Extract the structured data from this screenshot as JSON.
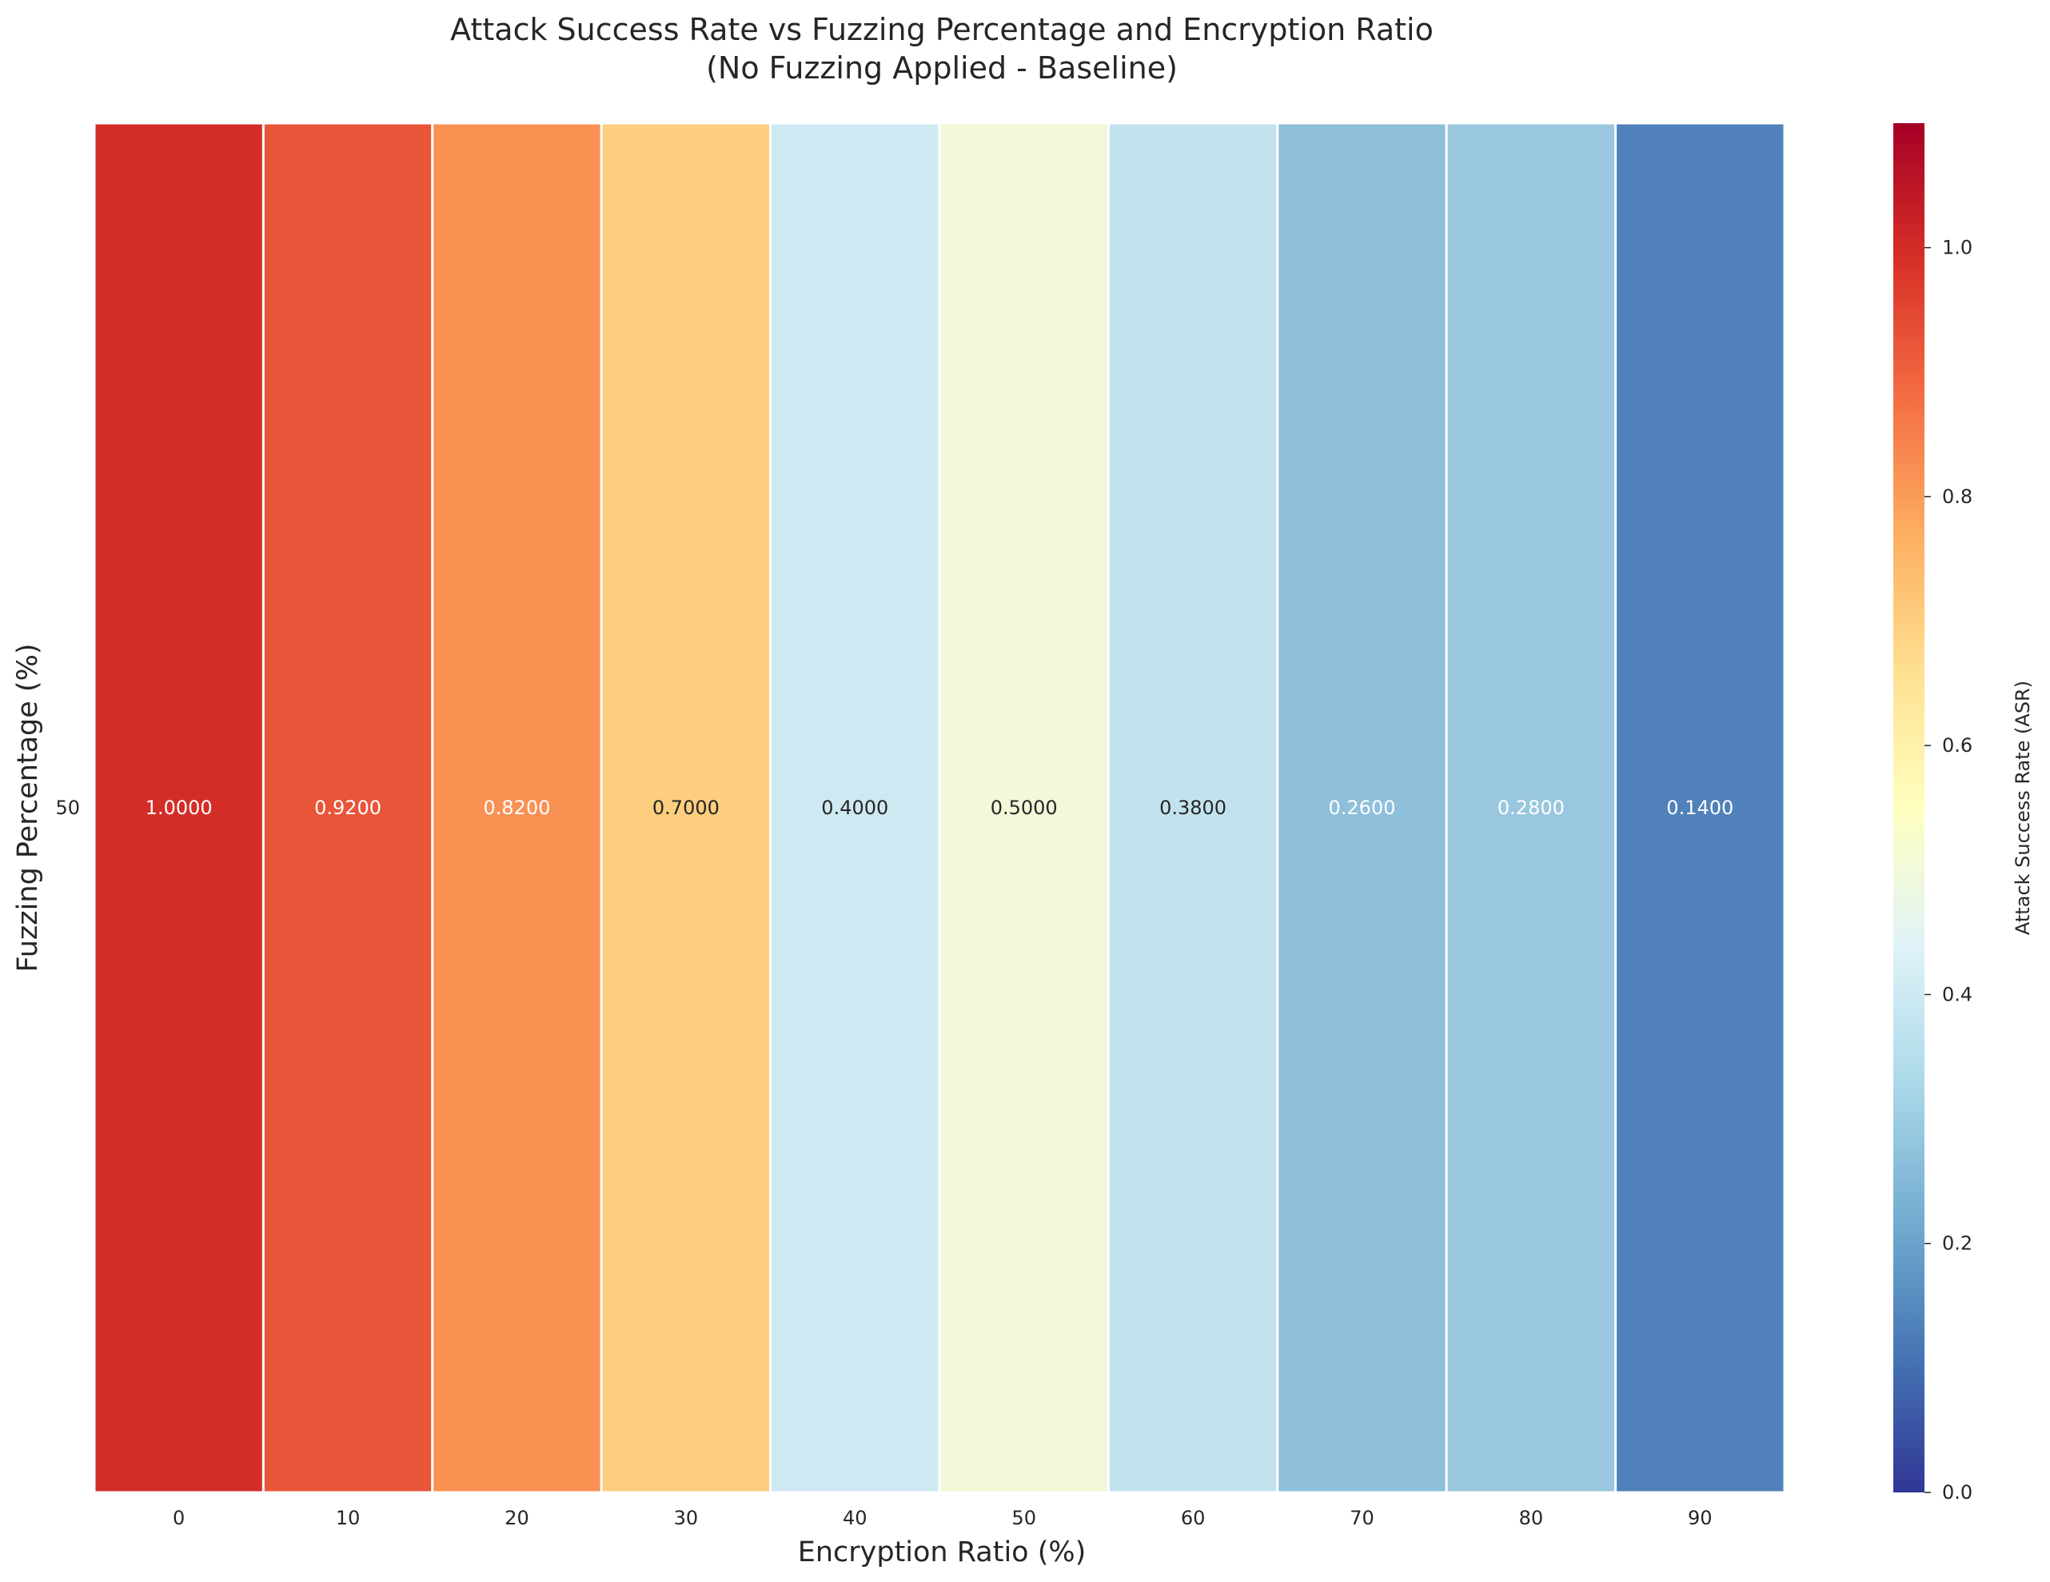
{
  "chart_data": {
    "type": "heatmap",
    "title": "Attack Success Rate vs Fuzzing Percentage and Encryption Ratio",
    "subtitle": "(No Fuzzing Applied - Baseline)",
    "xlabel": "Encryption Ratio (%)",
    "ylabel": "Fuzzing Percentage (%)",
    "x_categories": [
      "0",
      "10",
      "20",
      "30",
      "40",
      "50",
      "60",
      "70",
      "80",
      "90"
    ],
    "y_categories": [
      "50"
    ],
    "values": [
      [
        1.0,
        0.92,
        0.82,
        0.7,
        0.4,
        0.5,
        0.38,
        0.26,
        0.28,
        0.14
      ]
    ],
    "value_labels": [
      [
        "1.0000",
        "0.9200",
        "0.8200",
        "0.7000",
        "0.4000",
        "0.5000",
        "0.3800",
        "0.2600",
        "0.2800",
        "0.1400"
      ]
    ],
    "colorbar": {
      "label": "Attack Success Rate (ASR)",
      "range": [
        0,
        1.1
      ],
      "ticks": [
        "0.0",
        "0.2",
        "0.4",
        "0.6",
        "0.8",
        "1.0"
      ],
      "colormap": "RdYlBu_r"
    },
    "colors": {
      "cells": [
        "#d42d27",
        "#e95538",
        "#f99153",
        "#fcce7e",
        "#cfe9f2",
        "#f1f9d8",
        "#c2e3ee",
        "#8ebfdb",
        "#99c7df",
        "#5181ba"
      ],
      "cell_text_light": "#ffffff",
      "cell_text_dark": "#262626",
      "cell_border": "#ffffff"
    }
  }
}
